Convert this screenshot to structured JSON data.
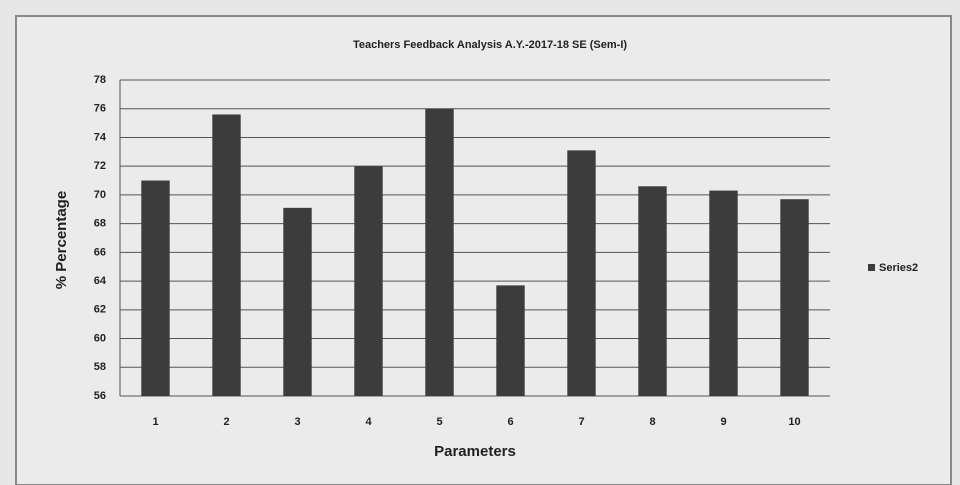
{
  "chart_data": {
    "type": "bar",
    "title": "Teachers Feedback Analysis A.Y.-2017-18 SE (Sem-I)",
    "x_label": "Parameters",
    "y_label": "% Percentage",
    "categories": [
      "1",
      "2",
      "3",
      "4",
      "5",
      "6",
      "7",
      "8",
      "9",
      "10"
    ],
    "series": [
      {
        "name": "Series2",
        "color": "#3c3c3c",
        "values": [
          71,
          75.6,
          69.1,
          72,
          76,
          63.7,
          73.1,
          70.6,
          70.3,
          69.7
        ]
      }
    ],
    "ylim": [
      56,
      78
    ],
    "yticks": [
      56,
      58,
      60,
      62,
      64,
      66,
      68,
      70,
      72,
      74,
      76,
      78
    ],
    "grid": true,
    "legend": "right"
  }
}
